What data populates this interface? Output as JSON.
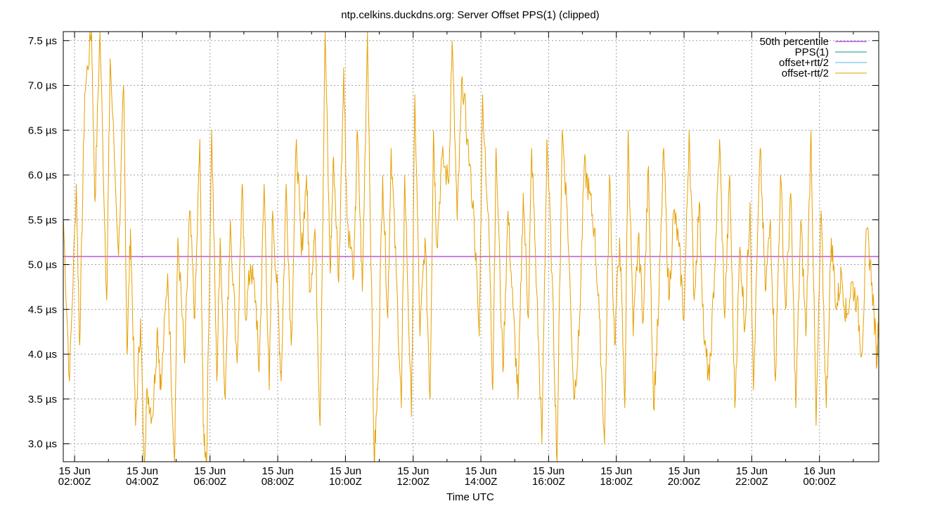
{
  "chart_data": {
    "type": "line",
    "title": "ntp.celkins.duckdns.org: Server Offset PPS(1) (clipped)",
    "xlabel": "Time UTC",
    "ylabel": "",
    "ylim": [
      2.8,
      7.6
    ],
    "xlim_hours": [
      1.666,
      25.75
    ],
    "y_unit": "µs",
    "grid": true,
    "legend_position": "top-right",
    "x_ticks": [
      {
        "hour": 2,
        "date": "15 Jun",
        "time": "02:00Z"
      },
      {
        "hour": 4,
        "date": "15 Jun",
        "time": "04:00Z"
      },
      {
        "hour": 6,
        "date": "15 Jun",
        "time": "06:00Z"
      },
      {
        "hour": 8,
        "date": "15 Jun",
        "time": "08:00Z"
      },
      {
        "hour": 10,
        "date": "15 Jun",
        "time": "10:00Z"
      },
      {
        "hour": 12,
        "date": "15 Jun",
        "time": "12:00Z"
      },
      {
        "hour": 14,
        "date": "15 Jun",
        "time": "14:00Z"
      },
      {
        "hour": 16,
        "date": "15 Jun",
        "time": "16:00Z"
      },
      {
        "hour": 18,
        "date": "15 Jun",
        "time": "18:00Z"
      },
      {
        "hour": 20,
        "date": "15 Jun",
        "time": "20:00Z"
      },
      {
        "hour": 22,
        "date": "15 Jun",
        "time": "22:00Z"
      },
      {
        "hour": 24,
        "date": "16 Jun",
        "time": "00:00Z"
      }
    ],
    "y_ticks": [
      {
        "value": 3.0,
        "label": "3.0 µs"
      },
      {
        "value": 3.5,
        "label": "3.5 µs"
      },
      {
        "value": 4.0,
        "label": "4.0 µs"
      },
      {
        "value": 4.5,
        "label": "4.5 µs"
      },
      {
        "value": 5.0,
        "label": "5.0 µs"
      },
      {
        "value": 5.5,
        "label": "5.5 µs"
      },
      {
        "value": 6.0,
        "label": "6.0 µs"
      },
      {
        "value": 6.5,
        "label": "6.5 µs"
      },
      {
        "value": 7.0,
        "label": "7.0 µs"
      },
      {
        "value": 7.5,
        "label": "7.5 µs"
      }
    ],
    "series": [
      {
        "name": "50th percentile",
        "color": "#9400d3",
        "kind": "hline",
        "value": 5.09
      },
      {
        "name": "PPS(1)",
        "color": "#009e73",
        "kind": "line",
        "values": []
      },
      {
        "name": "offset+rtt/2",
        "color": "#56b4e9",
        "kind": "line",
        "values": []
      },
      {
        "name": "offset-rtt/2",
        "color": "#e69f00",
        "kind": "line",
        "x": [
          1.67,
          1.85,
          2.05,
          2.15,
          2.3,
          2.5,
          2.6,
          2.75,
          2.95,
          3.05,
          3.3,
          3.45,
          3.55,
          3.65,
          3.8,
          3.95,
          4.05,
          4.15,
          4.3,
          4.45,
          4.55,
          4.75,
          4.95,
          5.05,
          5.25,
          5.4,
          5.55,
          5.7,
          5.8,
          5.9,
          6.05,
          6.2,
          6.3,
          6.45,
          6.6,
          6.8,
          6.95,
          7.05,
          7.2,
          7.35,
          7.45,
          7.6,
          7.75,
          7.85,
          8.0,
          8.1,
          8.25,
          8.4,
          8.55,
          8.7,
          8.85,
          8.95,
          9.1,
          9.25,
          9.4,
          9.55,
          9.65,
          9.8,
          9.95,
          10.05,
          10.25,
          10.35,
          10.5,
          10.65,
          10.85,
          10.95,
          11.1,
          11.25,
          11.35,
          11.5,
          11.65,
          11.75,
          11.95,
          12.05,
          12.2,
          12.35,
          12.5,
          12.6,
          12.7,
          12.85,
          13.05,
          13.15,
          13.3,
          13.45,
          13.6,
          13.8,
          13.95,
          14.05,
          14.25,
          14.35,
          14.45,
          14.65,
          14.8,
          14.95,
          15.1,
          15.25,
          15.4,
          15.5,
          15.65,
          15.8,
          15.95,
          16.1,
          16.25,
          16.4,
          16.55,
          16.75,
          16.9,
          17.05,
          17.2,
          17.35,
          17.5,
          17.65,
          17.8,
          17.95,
          18.1,
          18.25,
          18.35,
          18.5,
          18.65,
          18.8,
          18.95,
          19.1,
          19.25,
          19.4,
          19.55,
          19.7,
          19.85,
          20.0,
          20.15,
          20.3,
          20.45,
          20.6,
          20.75,
          20.9,
          21.05,
          21.2,
          21.35,
          21.5,
          21.65,
          21.8,
          21.95,
          22.05,
          22.25,
          22.4,
          22.55,
          22.7,
          22.85,
          23.0,
          23.15,
          23.3,
          23.45,
          23.6,
          23.75,
          23.9,
          24.05,
          24.2,
          24.35,
          24.5,
          24.65,
          24.8,
          24.95,
          25.1,
          25.25,
          25.4,
          25.55,
          25.7,
          25.75
        ],
        "values": [
          5.5,
          3.7,
          5.9,
          4.1,
          6.9,
          7.6,
          5.7,
          7.6,
          4.6,
          7.3,
          5.1,
          7.0,
          4.0,
          5.4,
          3.2,
          4.4,
          2.8,
          3.6,
          3.3,
          4.3,
          3.6,
          4.9,
          2.8,
          5.3,
          3.9,
          5.6,
          4.4,
          6.4,
          3.2,
          2.8,
          6.5,
          3.7,
          5.3,
          3.5,
          5.5,
          3.9,
          5.9,
          4.4,
          5.0,
          4.6,
          3.8,
          5.9,
          3.6,
          5.6,
          4.6,
          3.7,
          5.9,
          4.1,
          6.4,
          5.1,
          6.0,
          4.7,
          5.4,
          3.2,
          7.6,
          4.9,
          6.2,
          4.8,
          7.2,
          5.5,
          4.9,
          6.5,
          4.7,
          7.6,
          2.8,
          3.6,
          6.0,
          4.4,
          6.3,
          4.9,
          3.4,
          6.0,
          3.3,
          6.9,
          4.2,
          5.3,
          3.5,
          6.5,
          5.2,
          6.2,
          5.9,
          7.5,
          5.5,
          7.1,
          6.4,
          5.5,
          4.2,
          6.9,
          5.2,
          3.6,
          6.3,
          3.8,
          5.6,
          4.5,
          3.5,
          5.8,
          4.4,
          6.3,
          4.7,
          3.0,
          6.4,
          4.9,
          2.8,
          6.5,
          5.6,
          3.5,
          4.2,
          6.1,
          5.8,
          5.4,
          4.4,
          3.0,
          6.0,
          4.1,
          5.3,
          3.4,
          6.5,
          4.2,
          5.3,
          4.4,
          6.1,
          3.4,
          4.5,
          6.3,
          4.6,
          5.6,
          5.2,
          4.4,
          6.5,
          4.6,
          5.7,
          4.1,
          3.7,
          4.9,
          6.4,
          4.4,
          6.0,
          3.4,
          5.2,
          4.3,
          5.7,
          3.6,
          6.3,
          4.7,
          5.5,
          3.7,
          6.0,
          4.5,
          5.8,
          3.4,
          5.5,
          4.2,
          6.5,
          3.2,
          5.6,
          3.4,
          5.3,
          4.5,
          4.9,
          4.4,
          4.8,
          4.6,
          4.0,
          5.4,
          4.8,
          3.9,
          4.6
        ]
      }
    ]
  }
}
